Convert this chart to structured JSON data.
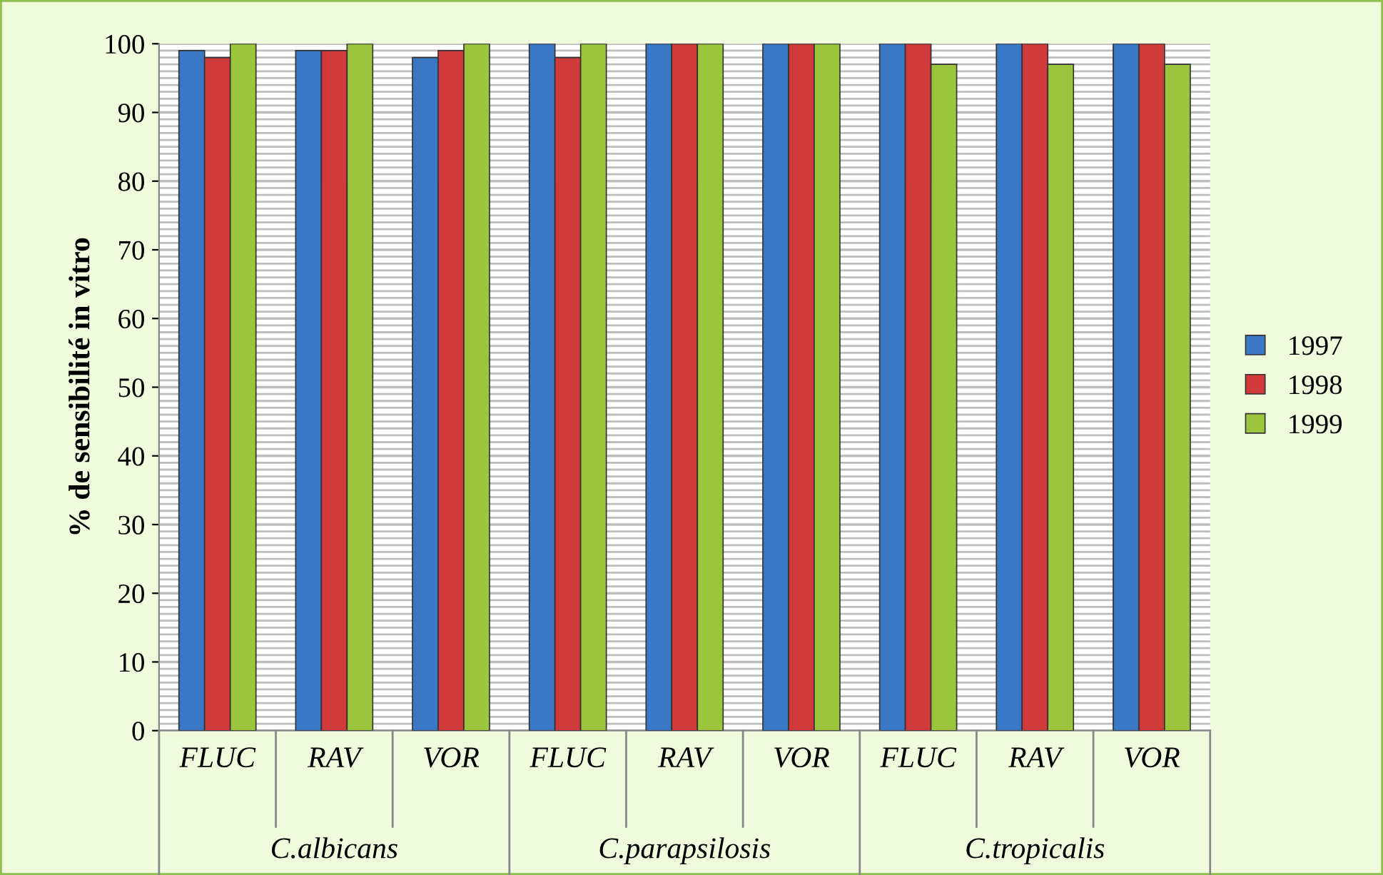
{
  "chart_data": {
    "type": "bar",
    "ylabel": "% de sensibilité in vitro",
    "categories": [
      "FLUC",
      "RAV",
      "VOR",
      "FLUC",
      "RAV",
      "VOR",
      "FLUC",
      "RAV",
      "VOR"
    ],
    "annotations": [
      "C.albicans",
      "C.parapsilosis",
      "C.tropicalis"
    ],
    "series": [
      {
        "name": "1997",
        "color": "#3a78c6",
        "values": [
          99,
          99,
          98,
          100,
          100,
          100,
          100,
          100,
          100
        ]
      },
      {
        "name": "1998",
        "color": "#d03a3a",
        "values": [
          98,
          99,
          99,
          98,
          100,
          100,
          100,
          100,
          100
        ]
      },
      {
        "name": "1999",
        "color": "#9bc53d",
        "values": [
          100,
          100,
          100,
          100,
          100,
          100,
          97,
          97,
          97
        ]
      }
    ],
    "ylim": [
      0,
      100
    ],
    "yticks": [
      0,
      10,
      20,
      30,
      40,
      50,
      60,
      70,
      80,
      90,
      100
    ],
    "grid": true,
    "legend": "right"
  }
}
